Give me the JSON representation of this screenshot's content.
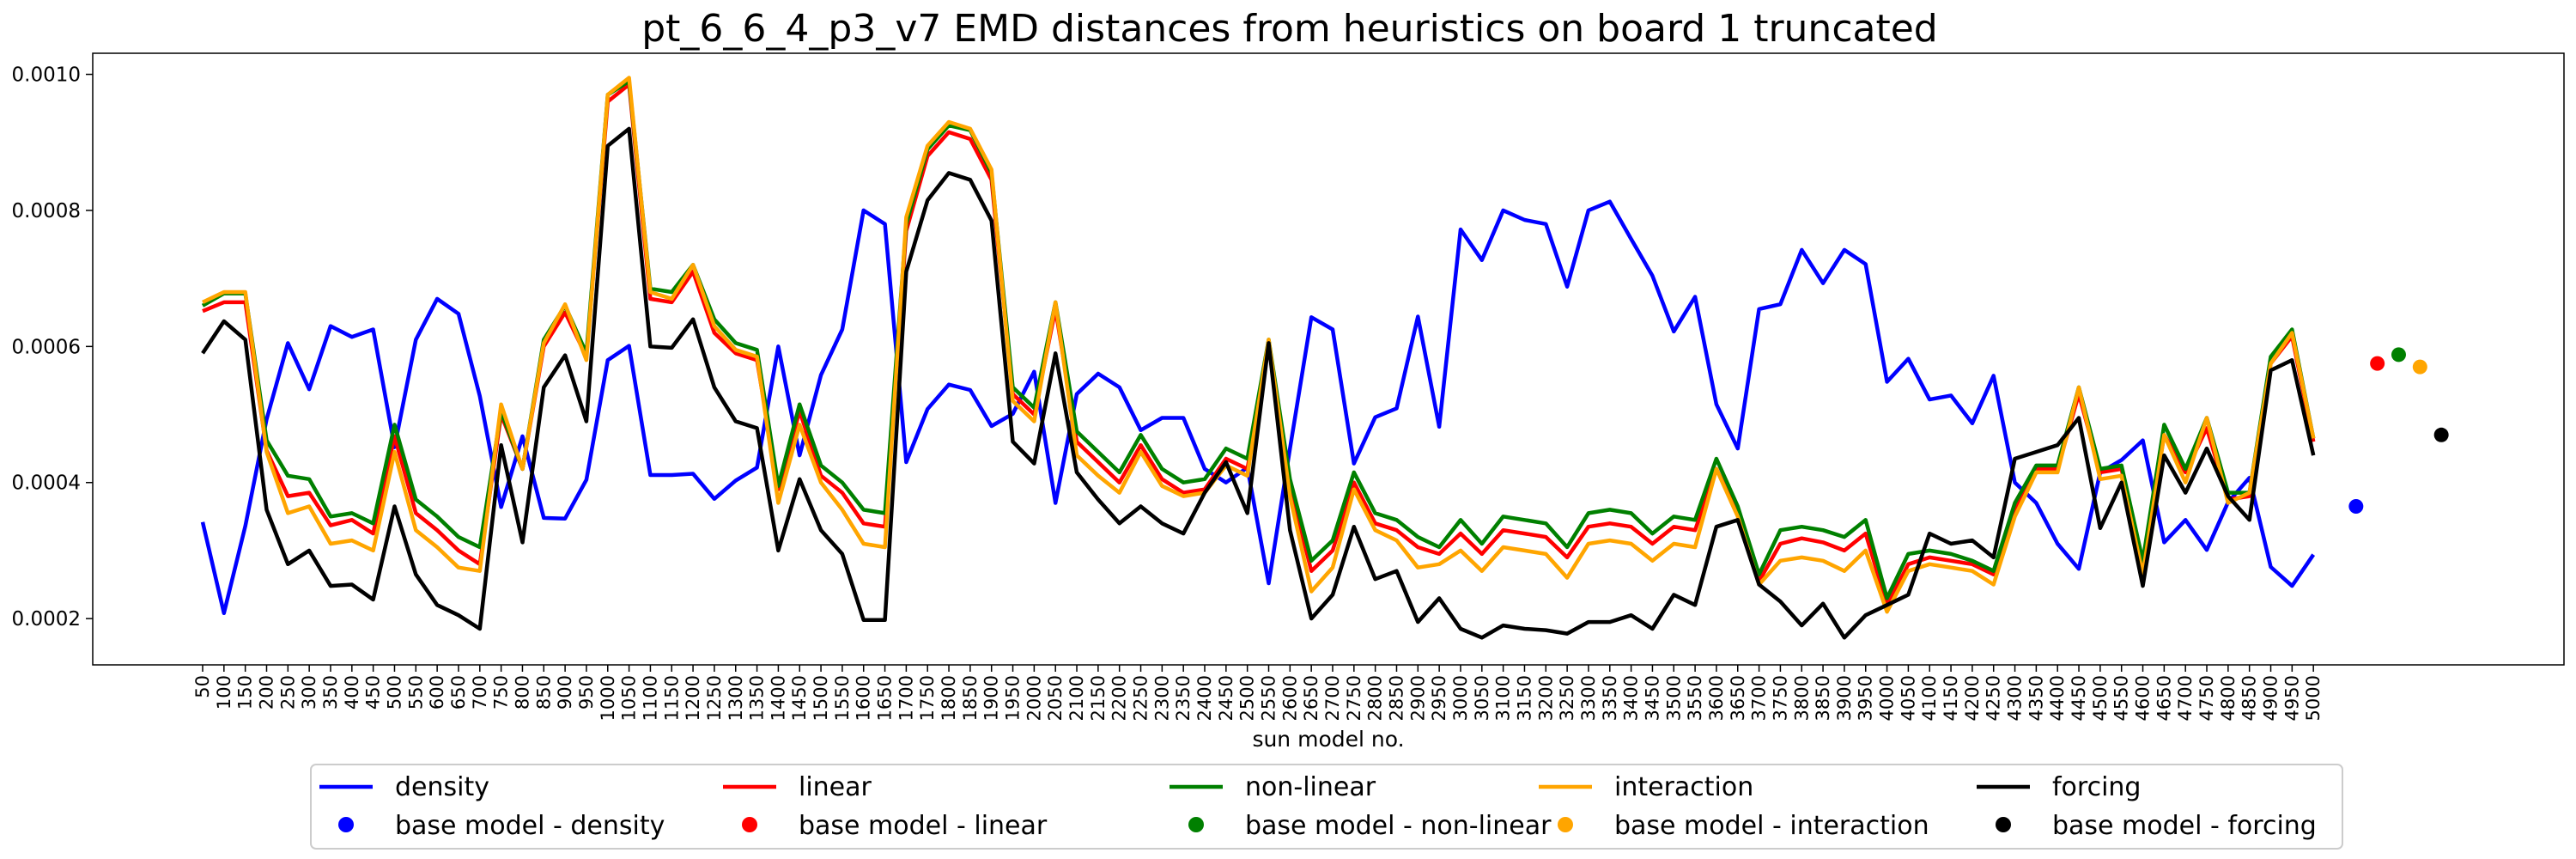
{
  "chart_data": {
    "type": "line",
    "title": "pt_6_6_4_p3_v7 EMD distances from heuristics on board 1 truncated",
    "xlabel": "sun model no.",
    "ylabel": "",
    "ylim": [
      0.000132,
      0.001031
    ],
    "yticks": [
      0.0002,
      0.0004,
      0.0006,
      0.0008,
      0.001
    ],
    "ytick_labels": [
      "0.0002",
      "0.0004",
      "0.0006",
      "0.0008",
      "0.0010"
    ],
    "grid": false,
    "legend_position": "bottom-center",
    "x": [
      50,
      100,
      150,
      200,
      250,
      300,
      350,
      400,
      450,
      500,
      550,
      600,
      650,
      700,
      750,
      800,
      850,
      900,
      950,
      1000,
      1050,
      1100,
      1150,
      1200,
      1250,
      1300,
      1350,
      1400,
      1450,
      1500,
      1550,
      1600,
      1650,
      1700,
      1750,
      1800,
      1850,
      1900,
      1950,
      2000,
      2050,
      2100,
      2150,
      2200,
      2250,
      2300,
      2350,
      2400,
      2450,
      2500,
      2550,
      2600,
      2650,
      2700,
      2750,
      2800,
      2850,
      2900,
      2950,
      3000,
      3050,
      3100,
      3150,
      3200,
      3250,
      3300,
      3350,
      3400,
      3450,
      3500,
      3550,
      3600,
      3650,
      3700,
      3750,
      3800,
      3850,
      3900,
      3950,
      4000,
      4050,
      4100,
      4150,
      4200,
      4250,
      4300,
      4350,
      4400,
      4450,
      4500,
      4550,
      4600,
      4650,
      4700,
      4750,
      4800,
      4850,
      4900,
      4950,
      5000
    ],
    "series": [
      {
        "name": "density",
        "color": "#0000ff",
        "values": [
          0.000342,
          0.000208,
          0.000336,
          0.000493,
          0.000605,
          0.000537,
          0.00063,
          0.000614,
          0.000625,
          0.000452,
          0.00061,
          0.00067,
          0.000648,
          0.000527,
          0.000364,
          0.000468,
          0.000348,
          0.000347,
          0.000404,
          0.00058,
          0.000601,
          0.000411,
          0.000411,
          0.000413,
          0.000376,
          0.000403,
          0.000422,
          0.0006,
          0.00044,
          0.000558,
          0.000625,
          0.0008,
          0.00078,
          0.00043,
          0.000508,
          0.000544,
          0.000536,
          0.000483,
          0.000501,
          0.000563,
          0.00037,
          0.00053,
          0.00056,
          0.00054,
          0.000477,
          0.000495,
          0.000495,
          0.00042,
          0.0004,
          0.000422,
          0.000252,
          0.00045,
          0.000643,
          0.000625,
          0.000428,
          0.000496,
          0.000509,
          0.000644,
          0.000482,
          0.000772,
          0.000727,
          0.0008,
          0.000786,
          0.00078,
          0.000688,
          0.0008,
          0.000813,
          0.000758,
          0.000704,
          0.000622,
          0.000673,
          0.000515,
          0.00045,
          0.000655,
          0.000662,
          0.000742,
          0.000693,
          0.000742,
          0.000721,
          0.000548,
          0.000582,
          0.000522,
          0.000528,
          0.000487,
          0.000557,
          0.0004,
          0.00037,
          0.00031,
          0.000273,
          0.000415,
          0.000433,
          0.000462,
          0.000312,
          0.000345,
          0.000301,
          0.000371,
          0.000407,
          0.000276,
          0.000248,
          0.000294
        ]
      },
      {
        "name": "linear",
        "color": "#ff0000",
        "values": [
          0.000652,
          0.000665,
          0.000665,
          0.000447,
          0.00038,
          0.000385,
          0.000337,
          0.000345,
          0.000325,
          0.000468,
          0.000355,
          0.00033,
          0.0003,
          0.00028,
          0.0005,
          0.00042,
          0.0006,
          0.00065,
          0.000585,
          0.00096,
          0.000985,
          0.00067,
          0.000665,
          0.00071,
          0.00062,
          0.00059,
          0.00058,
          0.00039,
          0.000505,
          0.00041,
          0.000385,
          0.00034,
          0.000335,
          0.00077,
          0.00088,
          0.000915,
          0.000905,
          0.000845,
          0.00053,
          0.0005,
          0.000655,
          0.00046,
          0.00043,
          0.0004,
          0.000455,
          0.000405,
          0.000385,
          0.00039,
          0.000435,
          0.00042,
          0.0006,
          0.000395,
          0.00027,
          0.0003,
          0.0004,
          0.00034,
          0.00033,
          0.000305,
          0.000295,
          0.000325,
          0.000295,
          0.00033,
          0.000325,
          0.00032,
          0.00029,
          0.000335,
          0.00034,
          0.000335,
          0.00031,
          0.000335,
          0.00033,
          0.00042,
          0.000355,
          0.000255,
          0.00031,
          0.000318,
          0.000312,
          0.0003,
          0.000325,
          0.00022,
          0.00028,
          0.00029,
          0.000285,
          0.00028,
          0.000265,
          0.00036,
          0.00042,
          0.00042,
          0.00053,
          0.000415,
          0.00042,
          0.000275,
          0.00047,
          0.000415,
          0.00048,
          0.000375,
          0.00038,
          0.000575,
          0.000615,
          0.00046
        ]
      },
      {
        "name": "non-linear",
        "color": "#008000",
        "values": [
          0.00066,
          0.000678,
          0.000678,
          0.000462,
          0.00041,
          0.000405,
          0.00035,
          0.000355,
          0.00034,
          0.000485,
          0.000375,
          0.00035,
          0.00032,
          0.000305,
          0.000505,
          0.00042,
          0.00061,
          0.00066,
          0.00059,
          0.00097,
          0.00099,
          0.000685,
          0.00068,
          0.00072,
          0.00064,
          0.000605,
          0.000595,
          0.000395,
          0.000515,
          0.000425,
          0.0004,
          0.00036,
          0.000355,
          0.00078,
          0.00089,
          0.000925,
          0.000918,
          0.000855,
          0.00054,
          0.00051,
          0.000665,
          0.000475,
          0.000445,
          0.000415,
          0.00047,
          0.00042,
          0.0004,
          0.000405,
          0.00045,
          0.000435,
          0.00061,
          0.000405,
          0.000285,
          0.000315,
          0.000415,
          0.000355,
          0.000345,
          0.00032,
          0.000305,
          0.000345,
          0.00031,
          0.00035,
          0.000345,
          0.00034,
          0.000305,
          0.000355,
          0.00036,
          0.000355,
          0.000325,
          0.00035,
          0.000345,
          0.000435,
          0.000365,
          0.000265,
          0.00033,
          0.000335,
          0.00033,
          0.00032,
          0.000345,
          0.00023,
          0.000295,
          0.0003,
          0.000295,
          0.000285,
          0.00027,
          0.00037,
          0.000425,
          0.000425,
          0.00054,
          0.00042,
          0.000425,
          0.000285,
          0.000485,
          0.00042,
          0.000495,
          0.000385,
          0.000385,
          0.000585,
          0.000625,
          0.000465
        ]
      },
      {
        "name": "interaction",
        "color": "#ffa500",
        "values": [
          0.000665,
          0.00068,
          0.00068,
          0.000445,
          0.000355,
          0.000365,
          0.00031,
          0.000315,
          0.0003,
          0.000445,
          0.00033,
          0.000305,
          0.000275,
          0.00027,
          0.000515,
          0.00042,
          0.000605,
          0.000662,
          0.00058,
          0.00097,
          0.000995,
          0.00068,
          0.00067,
          0.00072,
          0.00063,
          0.000595,
          0.000585,
          0.00037,
          0.000485,
          0.0004,
          0.00036,
          0.00031,
          0.000305,
          0.00079,
          0.000895,
          0.00093,
          0.00092,
          0.00086,
          0.00052,
          0.00049,
          0.000665,
          0.00044,
          0.00041,
          0.000385,
          0.000445,
          0.000395,
          0.00038,
          0.000385,
          0.000425,
          0.00041,
          0.00061,
          0.00038,
          0.00024,
          0.000275,
          0.00039,
          0.00033,
          0.000315,
          0.000275,
          0.00028,
          0.0003,
          0.00027,
          0.000305,
          0.0003,
          0.000295,
          0.00026,
          0.00031,
          0.000315,
          0.00031,
          0.000285,
          0.00031,
          0.000305,
          0.00042,
          0.00035,
          0.00025,
          0.000285,
          0.00029,
          0.000285,
          0.00027,
          0.0003,
          0.00021,
          0.00027,
          0.00028,
          0.000275,
          0.00027,
          0.00025,
          0.00035,
          0.000415,
          0.000415,
          0.00054,
          0.000405,
          0.00041,
          0.000265,
          0.00047,
          0.0004,
          0.000495,
          0.00037,
          0.000385,
          0.000575,
          0.00062,
          0.000465
        ]
      },
      {
        "name": "forcing",
        "color": "#000000",
        "values": [
          0.00059,
          0.000637,
          0.00061,
          0.00036,
          0.00028,
          0.0003,
          0.000248,
          0.00025,
          0.000228,
          0.000365,
          0.000265,
          0.00022,
          0.000205,
          0.000185,
          0.000455,
          0.000312,
          0.00054,
          0.000587,
          0.00049,
          0.000895,
          0.00092,
          0.0006,
          0.000598,
          0.00064,
          0.00054,
          0.00049,
          0.00048,
          0.0003,
          0.000405,
          0.00033,
          0.000295,
          0.000198,
          0.000198,
          0.00071,
          0.000815,
          0.000855,
          0.000845,
          0.000785,
          0.00046,
          0.000428,
          0.00059,
          0.000415,
          0.000375,
          0.00034,
          0.000365,
          0.00034,
          0.000325,
          0.000385,
          0.00043,
          0.000355,
          0.000605,
          0.00033,
          0.0002,
          0.000235,
          0.000335,
          0.000258,
          0.00027,
          0.000195,
          0.00023,
          0.000185,
          0.000172,
          0.00019,
          0.000185,
          0.000183,
          0.000178,
          0.000195,
          0.000195,
          0.000205,
          0.000185,
          0.000235,
          0.00022,
          0.000335,
          0.000345,
          0.00025,
          0.000225,
          0.00019,
          0.000222,
          0.000172,
          0.000205,
          0.00022,
          0.000235,
          0.000325,
          0.00031,
          0.000315,
          0.00029,
          0.000435,
          0.000445,
          0.000455,
          0.000495,
          0.000333,
          0.0004,
          0.000248,
          0.00044,
          0.000385,
          0.00045,
          0.00038,
          0.000345,
          0.000565,
          0.00058,
          0.00044
        ]
      }
    ],
    "base_points": [
      {
        "name": "base model - density",
        "color": "#0000ff",
        "value": 0.000365
      },
      {
        "name": "base model - linear",
        "color": "#ff0000",
        "value": 0.000575
      },
      {
        "name": "base model - non-linear",
        "color": "#008000",
        "value": 0.000588
      },
      {
        "name": "base model - interaction",
        "color": "#ffa500",
        "value": 0.00057
      },
      {
        "name": "base model - forcing",
        "color": "#000000",
        "value": 0.00047
      }
    ]
  }
}
